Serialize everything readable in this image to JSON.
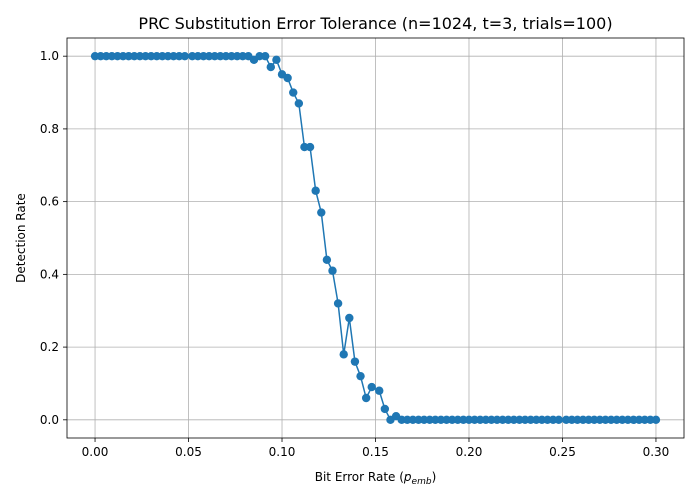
{
  "chart_data": {
    "type": "line",
    "title": "PRC Substitution Error Tolerance (n=1024, t=3, trials=100)",
    "xlabel_main": "Bit Error Rate (",
    "xlabel_var": "p",
    "xlabel_sub": "emb",
    "xlabel_close": ")",
    "ylabel": "Detection Rate",
    "xlim": [
      -0.015,
      0.315
    ],
    "ylim": [
      -0.05,
      1.05
    ],
    "x_ticks": [
      0.0,
      0.05,
      0.1,
      0.15,
      0.2,
      0.25,
      0.3
    ],
    "x_tick_labels": [
      "0.00",
      "0.05",
      "0.10",
      "0.15",
      "0.20",
      "0.25",
      "0.30"
    ],
    "y_ticks": [
      0.0,
      0.2,
      0.4,
      0.6,
      0.8,
      1.0
    ],
    "y_tick_labels": [
      "0.0",
      "0.2",
      "0.4",
      "0.6",
      "0.8",
      "1.0"
    ],
    "grid": true,
    "series": [
      {
        "color": "#1f77b4",
        "marker": "circle",
        "x": [
          0.0,
          0.003,
          0.006,
          0.009,
          0.012,
          0.015,
          0.018,
          0.021,
          0.024,
          0.027,
          0.03,
          0.033,
          0.036,
          0.039,
          0.042,
          0.045,
          0.048,
          0.052,
          0.055,
          0.058,
          0.061,
          0.064,
          0.067,
          0.07,
          0.073,
          0.076,
          0.079,
          0.082,
          0.085,
          0.088,
          0.091,
          0.094,
          0.097,
          0.1,
          0.103,
          0.106,
          0.109,
          0.112,
          0.115,
          0.118,
          0.121,
          0.124,
          0.127,
          0.13,
          0.133,
          0.136,
          0.139,
          0.142,
          0.145,
          0.148,
          0.152,
          0.155,
          0.158,
          0.161,
          0.164,
          0.167,
          0.17,
          0.173,
          0.176,
          0.179,
          0.182,
          0.185,
          0.188,
          0.191,
          0.194,
          0.197,
          0.2,
          0.203,
          0.206,
          0.209,
          0.212,
          0.215,
          0.218,
          0.221,
          0.224,
          0.227,
          0.23,
          0.233,
          0.236,
          0.239,
          0.242,
          0.245,
          0.248,
          0.252,
          0.255,
          0.258,
          0.261,
          0.264,
          0.267,
          0.27,
          0.273,
          0.276,
          0.279,
          0.282,
          0.285,
          0.288,
          0.291,
          0.294,
          0.297,
          0.3
        ],
        "y": [
          1.0,
          1.0,
          1.0,
          1.0,
          1.0,
          1.0,
          1.0,
          1.0,
          1.0,
          1.0,
          1.0,
          1.0,
          1.0,
          1.0,
          1.0,
          1.0,
          1.0,
          1.0,
          1.0,
          1.0,
          1.0,
          1.0,
          1.0,
          1.0,
          1.0,
          1.0,
          1.0,
          1.0,
          0.99,
          1.0,
          1.0,
          0.97,
          0.99,
          0.95,
          0.94,
          0.9,
          0.87,
          0.75,
          0.75,
          0.63,
          0.57,
          0.44,
          0.41,
          0.32,
          0.18,
          0.28,
          0.16,
          0.12,
          0.06,
          0.09,
          0.08,
          0.03,
          0.0,
          0.01,
          0.0,
          0.0,
          0.0,
          0.0,
          0.0,
          0.0,
          0.0,
          0.0,
          0.0,
          0.0,
          0.0,
          0.0,
          0.0,
          0.0,
          0.0,
          0.0,
          0.0,
          0.0,
          0.0,
          0.0,
          0.0,
          0.0,
          0.0,
          0.0,
          0.0,
          0.0,
          0.0,
          0.0,
          0.0,
          0.0,
          0.0,
          0.0,
          0.0,
          0.0,
          0.0,
          0.0,
          0.0,
          0.0,
          0.0,
          0.0,
          0.0,
          0.0,
          0.0,
          0.0,
          0.0,
          0.0
        ]
      }
    ]
  }
}
